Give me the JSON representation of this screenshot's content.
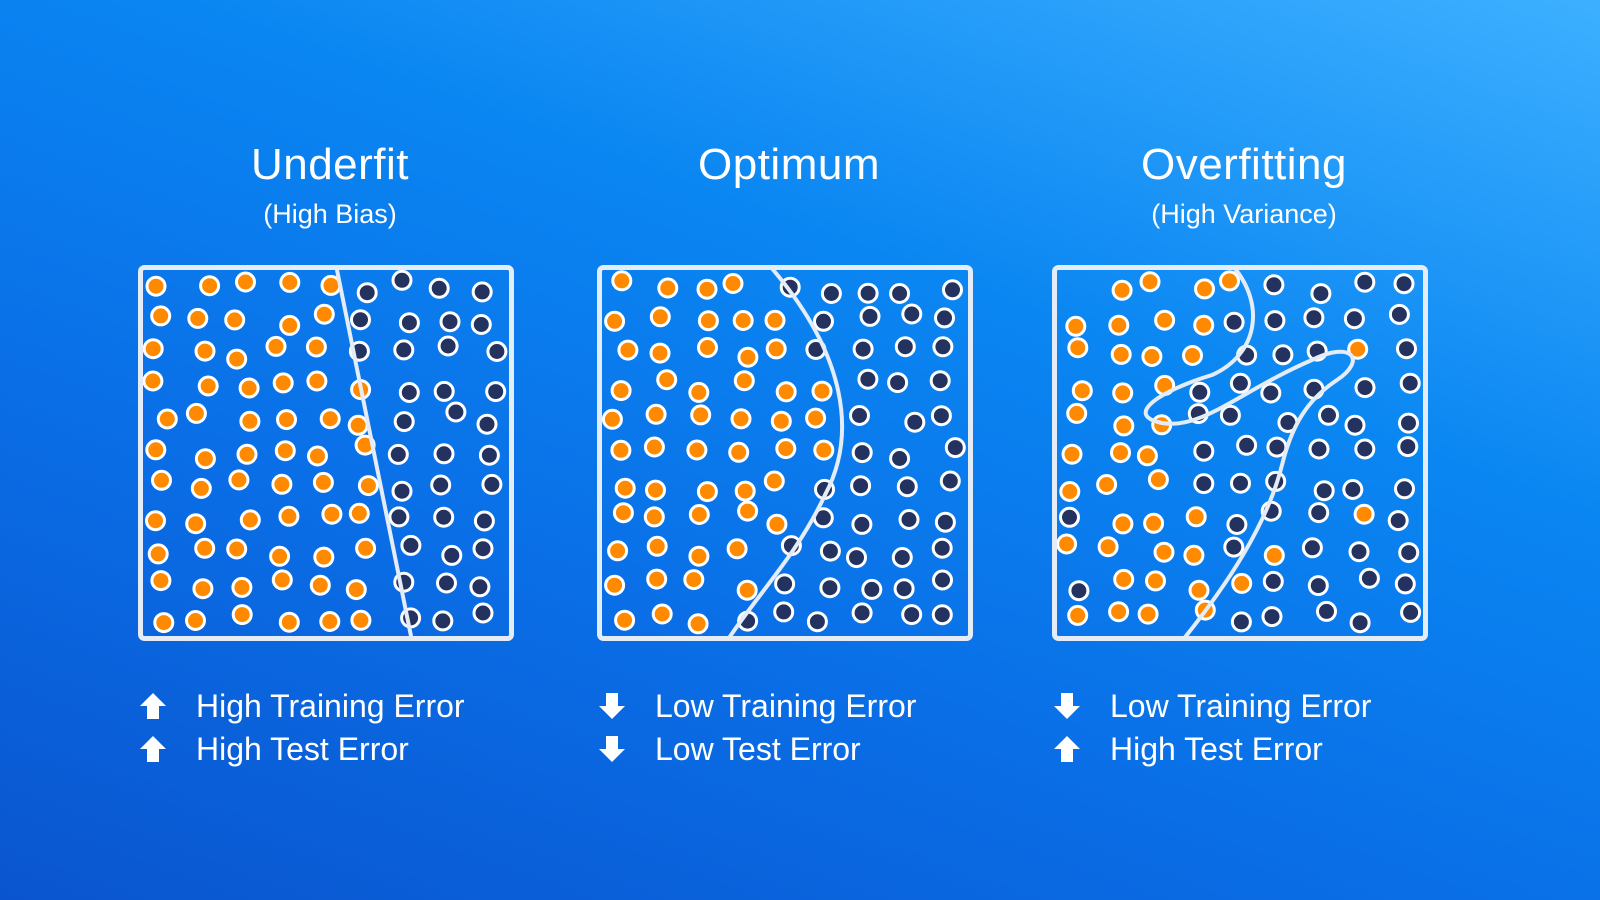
{
  "colors": {
    "orange": "#ff8a00",
    "navy": "#23325f",
    "line": "#e3ecf7"
  },
  "panels": [
    {
      "id": "underfit",
      "title": "Underfit",
      "subtitle": "(High Bias)",
      "metrics": [
        {
          "direction": "up",
          "icon": "arrow-up-icon",
          "text": "High Training Error"
        },
        {
          "direction": "up",
          "icon": "arrow-up-icon",
          "text": "High Test Error"
        }
      ]
    },
    {
      "id": "optimum",
      "title": "Optimum",
      "subtitle": "",
      "metrics": [
        {
          "direction": "down",
          "icon": "arrow-down-icon",
          "text": "Low Training Error"
        },
        {
          "direction": "down",
          "icon": "arrow-down-icon",
          "text": "Low Test Error"
        }
      ]
    },
    {
      "id": "overfitting",
      "title": "Overfitting",
      "subtitle": "(High Variance)",
      "metrics": [
        {
          "direction": "down",
          "icon": "arrow-down-icon",
          "text": "Low Training Error"
        },
        {
          "direction": "up",
          "icon": "arrow-up-icon",
          "text": "High Test Error"
        }
      ]
    }
  ]
}
